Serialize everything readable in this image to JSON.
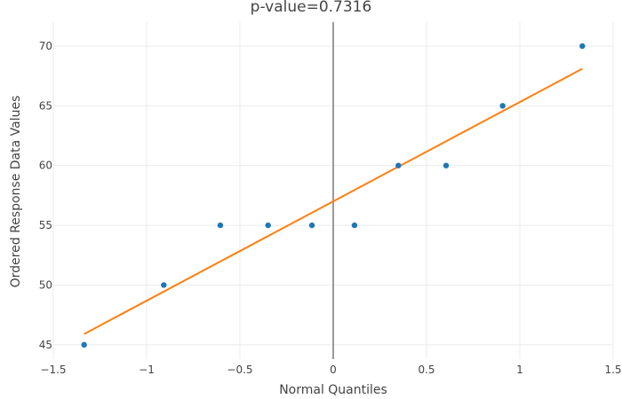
{
  "chart_data": {
    "type": "scatter",
    "title": "p-value=0.7316",
    "xlabel": "Normal Quantiles",
    "ylabel": "Ordered Response Data Values",
    "xlim": [
      -1.5,
      1.5
    ],
    "ylim": [
      43.8,
      72
    ],
    "x_ticks": [
      -1.5,
      -1,
      -0.5,
      0,
      0.5,
      1,
      1.5
    ],
    "x_tick_labels": [
      "−1.5",
      "−1",
      "−0.5",
      "0",
      "0.5",
      "1",
      "1.5"
    ],
    "y_ticks": [
      45,
      50,
      55,
      60,
      65,
      70
    ],
    "y_tick_labels": [
      "45",
      "50",
      "55",
      "60",
      "65",
      "70"
    ],
    "grid": true,
    "points": {
      "x": [
        -1.335,
        -0.908,
        -0.605,
        -0.349,
        -0.114,
        0.114,
        0.349,
        0.605,
        0.908,
        1.335
      ],
      "y": [
        45,
        50,
        55,
        55,
        55,
        55,
        60,
        60,
        65,
        70
      ],
      "color": "#1f77b4"
    },
    "fit_line": {
      "x": [
        -1.335,
        1.335
      ],
      "y": [
        45.9,
        68.1
      ],
      "color": "#ff7f0e"
    },
    "zero_line": {
      "x": 0,
      "color": "#808080"
    }
  }
}
